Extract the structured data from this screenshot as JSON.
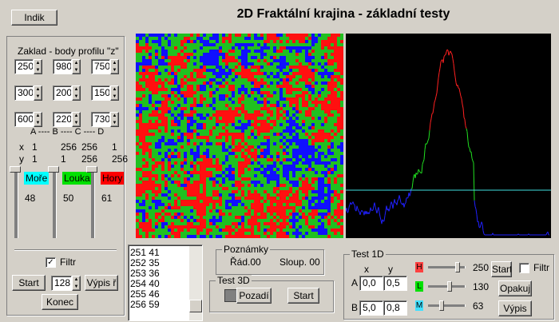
{
  "title": "2D Fraktální krajina - základní testy",
  "indik": "Indik",
  "base": {
    "label": "Zaklad - body profilu \"z\"",
    "spins": [
      [
        250,
        980,
        750
      ],
      [
        300,
        200,
        150
      ],
      [
        600,
        220,
        730
      ]
    ],
    "header": "A ---- B ---- C ---- D",
    "x_row": [
      "x",
      1,
      256,
      256,
      1
    ],
    "y_row": [
      "y",
      1,
      1,
      256,
      256
    ],
    "zones": [
      {
        "label": "Moře",
        "value": 48
      },
      {
        "label": "Louka",
        "value": 50
      },
      {
        "label": "Hory",
        "value": 61
      }
    ],
    "filter": "Filtr",
    "start": "Start",
    "count": 128,
    "list_btn": "Výpis ř",
    "end": "Konec"
  },
  "list": [
    "251  41",
    "252  35",
    "253  36",
    "254  40",
    "255  46",
    "256  59"
  ],
  "notes": {
    "label": "Poznámky",
    "row": "Řád.00",
    "col": "Sloup. 00"
  },
  "test3d": {
    "label": "Test 3D",
    "background": "Pozadí",
    "start": "Start"
  },
  "test1d": {
    "label": "Test 1D",
    "x": "x",
    "y": "y",
    "a": "A",
    "b": "B",
    "a_vals": [
      "0,0",
      "0,5"
    ],
    "b_vals": [
      "5,0",
      "0,8"
    ],
    "sliders": [
      {
        "label": "H",
        "value": 250
      },
      {
        "label": "L",
        "value": 130
      },
      {
        "label": "M",
        "value": 63
      }
    ],
    "start": "Start",
    "filter": "Filtr",
    "repeat": "Opakuj",
    "list_btn": "Výpis"
  }
}
